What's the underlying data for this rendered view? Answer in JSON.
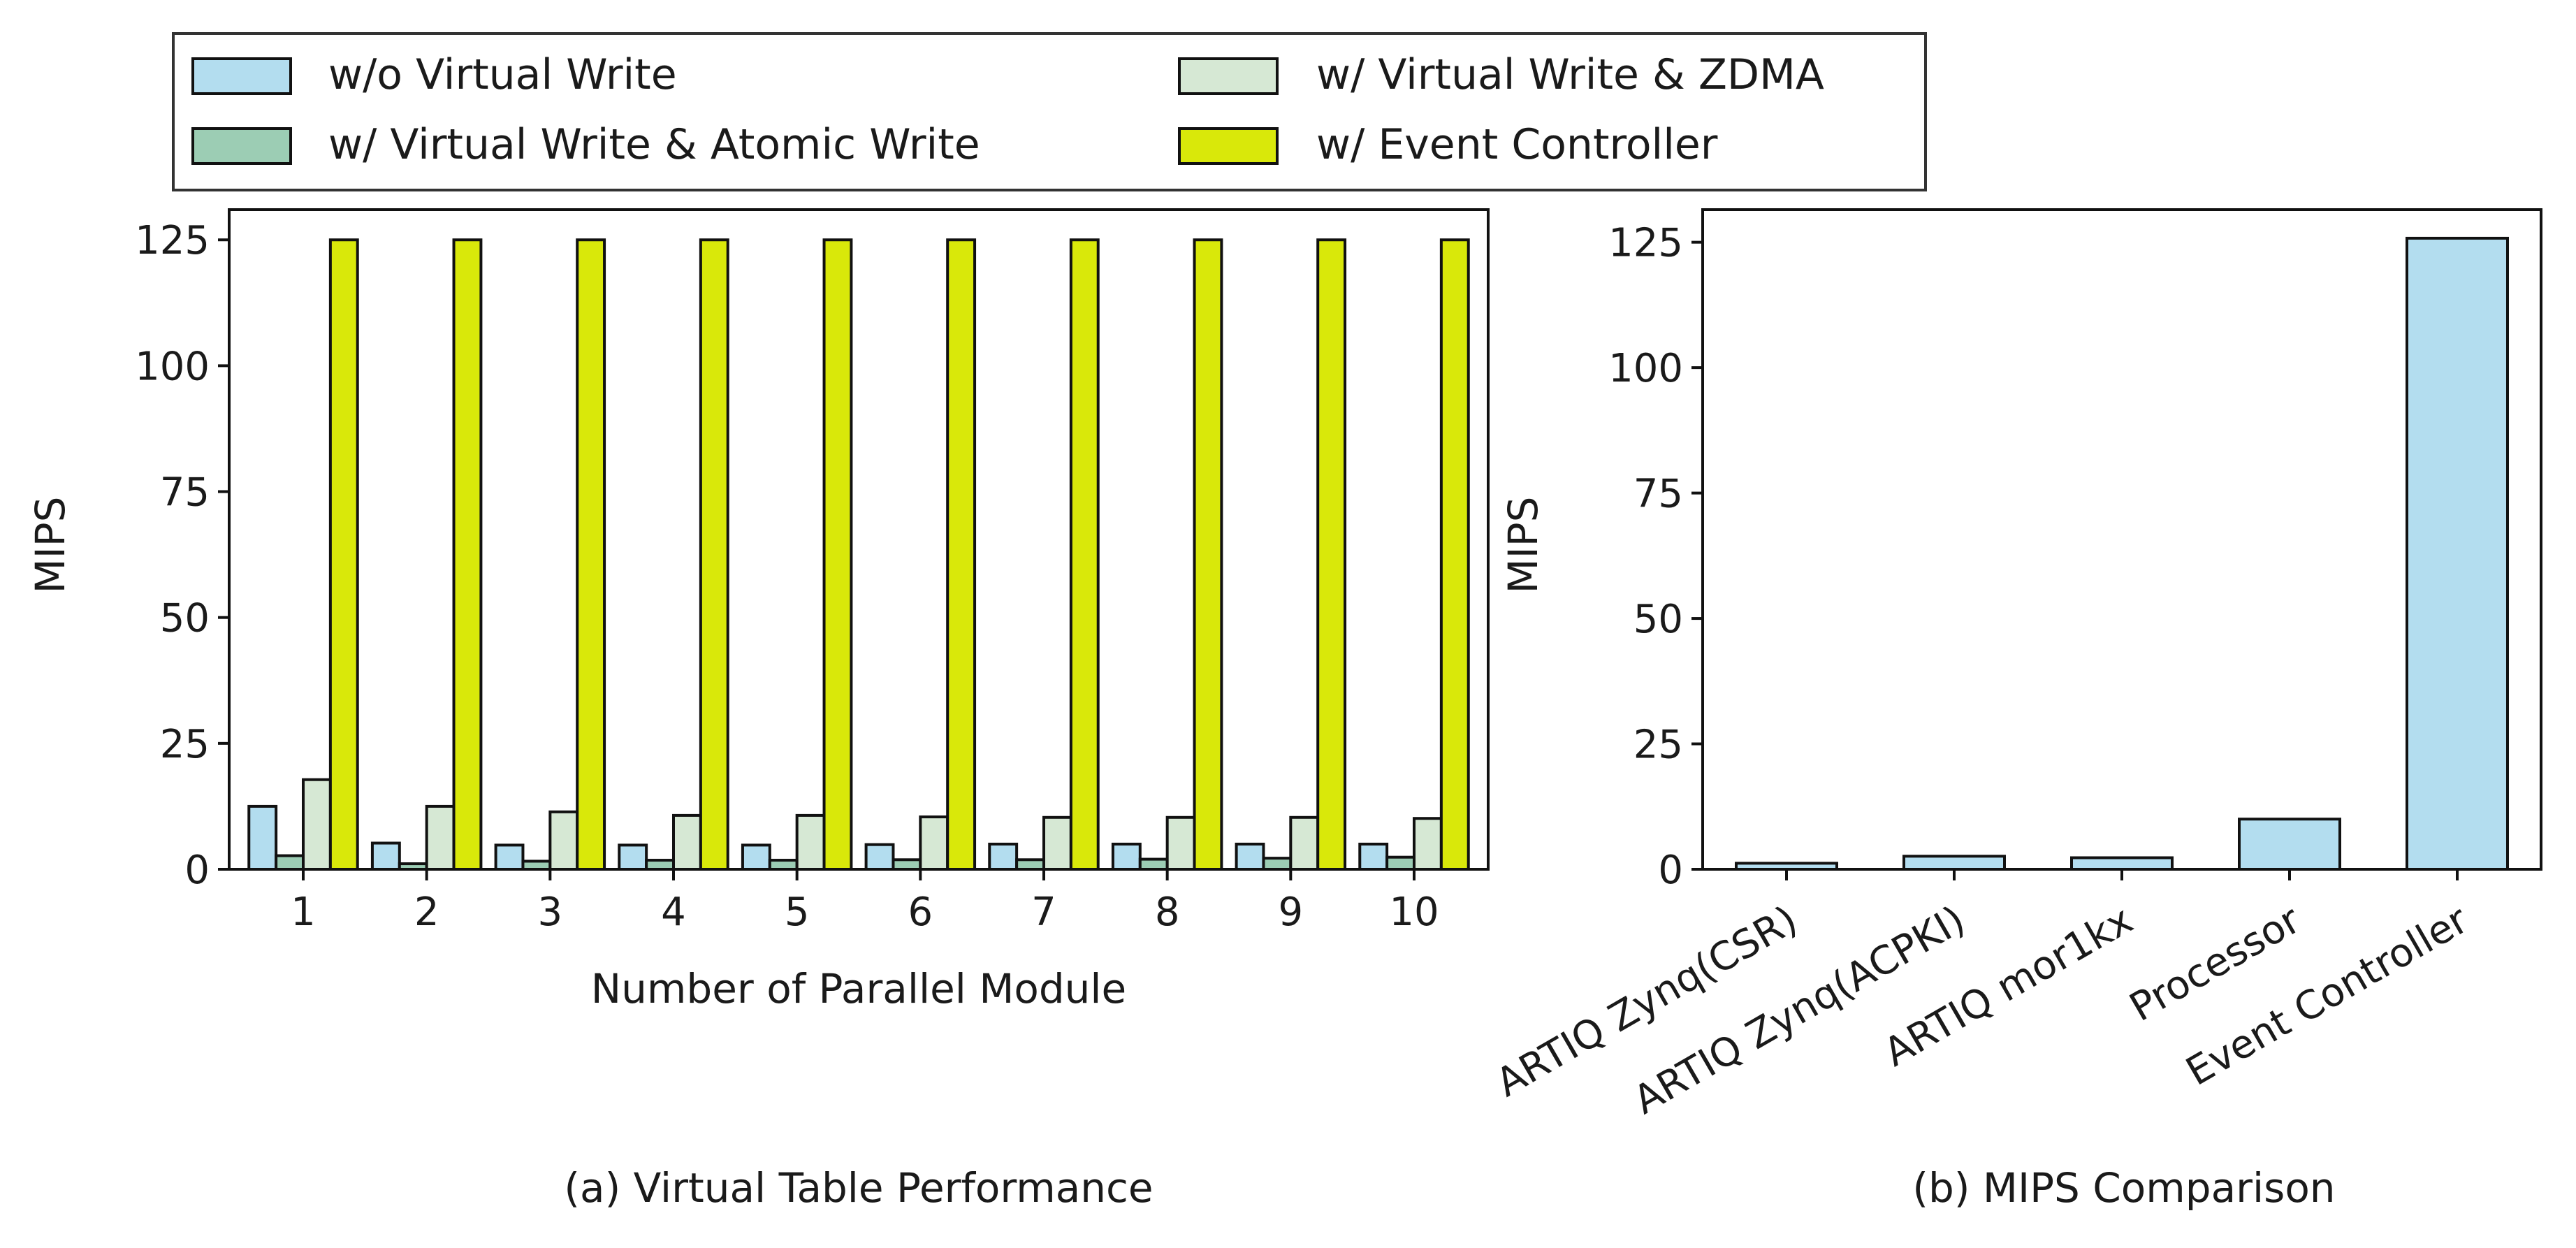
{
  "colors": {
    "wo_virtual_write": "#b3ddef",
    "virtual_atomic": "#9ccdb4",
    "virtual_zdma": "#d6e8d4",
    "event_controller": "#d9e80a",
    "edge": "#111111"
  },
  "legend": {
    "items": [
      {
        "label": "w/o Virtual Write",
        "color_key": "wo_virtual_write"
      },
      {
        "label": "w/ Virtual Write & ZDMA",
        "color_key": "virtual_zdma"
      },
      {
        "label": "w/ Virtual Write & Atomic Write",
        "color_key": "virtual_atomic"
      },
      {
        "label": "w/ Event Controller",
        "color_key": "event_controller"
      }
    ],
    "placement": "top-left, above panel (a)"
  },
  "chart_data": [
    {
      "type": "bar",
      "caption": "(a) Virtual Table Performance",
      "xlabel": "Number of Parallel Module",
      "ylabel": "MIPS",
      "ylim": [
        0,
        131
      ],
      "yticks": [
        0,
        25,
        50,
        75,
        100,
        125
      ],
      "categories": [
        "1",
        "2",
        "3",
        "4",
        "5",
        "6",
        "7",
        "8",
        "9",
        "10"
      ],
      "series": [
        {
          "name": "w/o Virtual Write",
          "color_key": "wo_virtual_write",
          "values": [
            12.5,
            5.2,
            4.8,
            4.8,
            4.8,
            4.9,
            5.0,
            5.0,
            5.0,
            5.0
          ]
        },
        {
          "name": "w/ Virtual Write & Atomic Write",
          "color_key": "virtual_atomic",
          "values": [
            2.7,
            1.1,
            1.6,
            1.8,
            1.8,
            1.9,
            1.9,
            2.0,
            2.2,
            2.4
          ]
        },
        {
          "name": "w/ Virtual Write & ZDMA",
          "color_key": "virtual_zdma",
          "values": [
            17.8,
            12.5,
            11.4,
            10.7,
            10.7,
            10.4,
            10.3,
            10.3,
            10.3,
            10.1
          ]
        },
        {
          "name": "w/ Event Controller",
          "color_key": "event_controller",
          "values": [
            125,
            125,
            125,
            125,
            125,
            125,
            125,
            125,
            125,
            125
          ]
        }
      ],
      "grid": false
    },
    {
      "type": "bar",
      "caption": "(b) MIPS Comparison",
      "xlabel": "",
      "ylabel": "MIPS",
      "ylim": [
        0,
        131.5
      ],
      "yticks": [
        0,
        25,
        50,
        75,
        100,
        125
      ],
      "categories": [
        "ARTIQ Zynq(CSR)",
        "ARTIQ Zynq(ACPKI)",
        "ARTIQ mor1kx",
        "Processor",
        "Event Controller"
      ],
      "values": [
        1.2,
        2.6,
        2.3,
        10.0,
        125.8
      ],
      "color_key": "wo_virtual_write",
      "grid": false
    }
  ]
}
